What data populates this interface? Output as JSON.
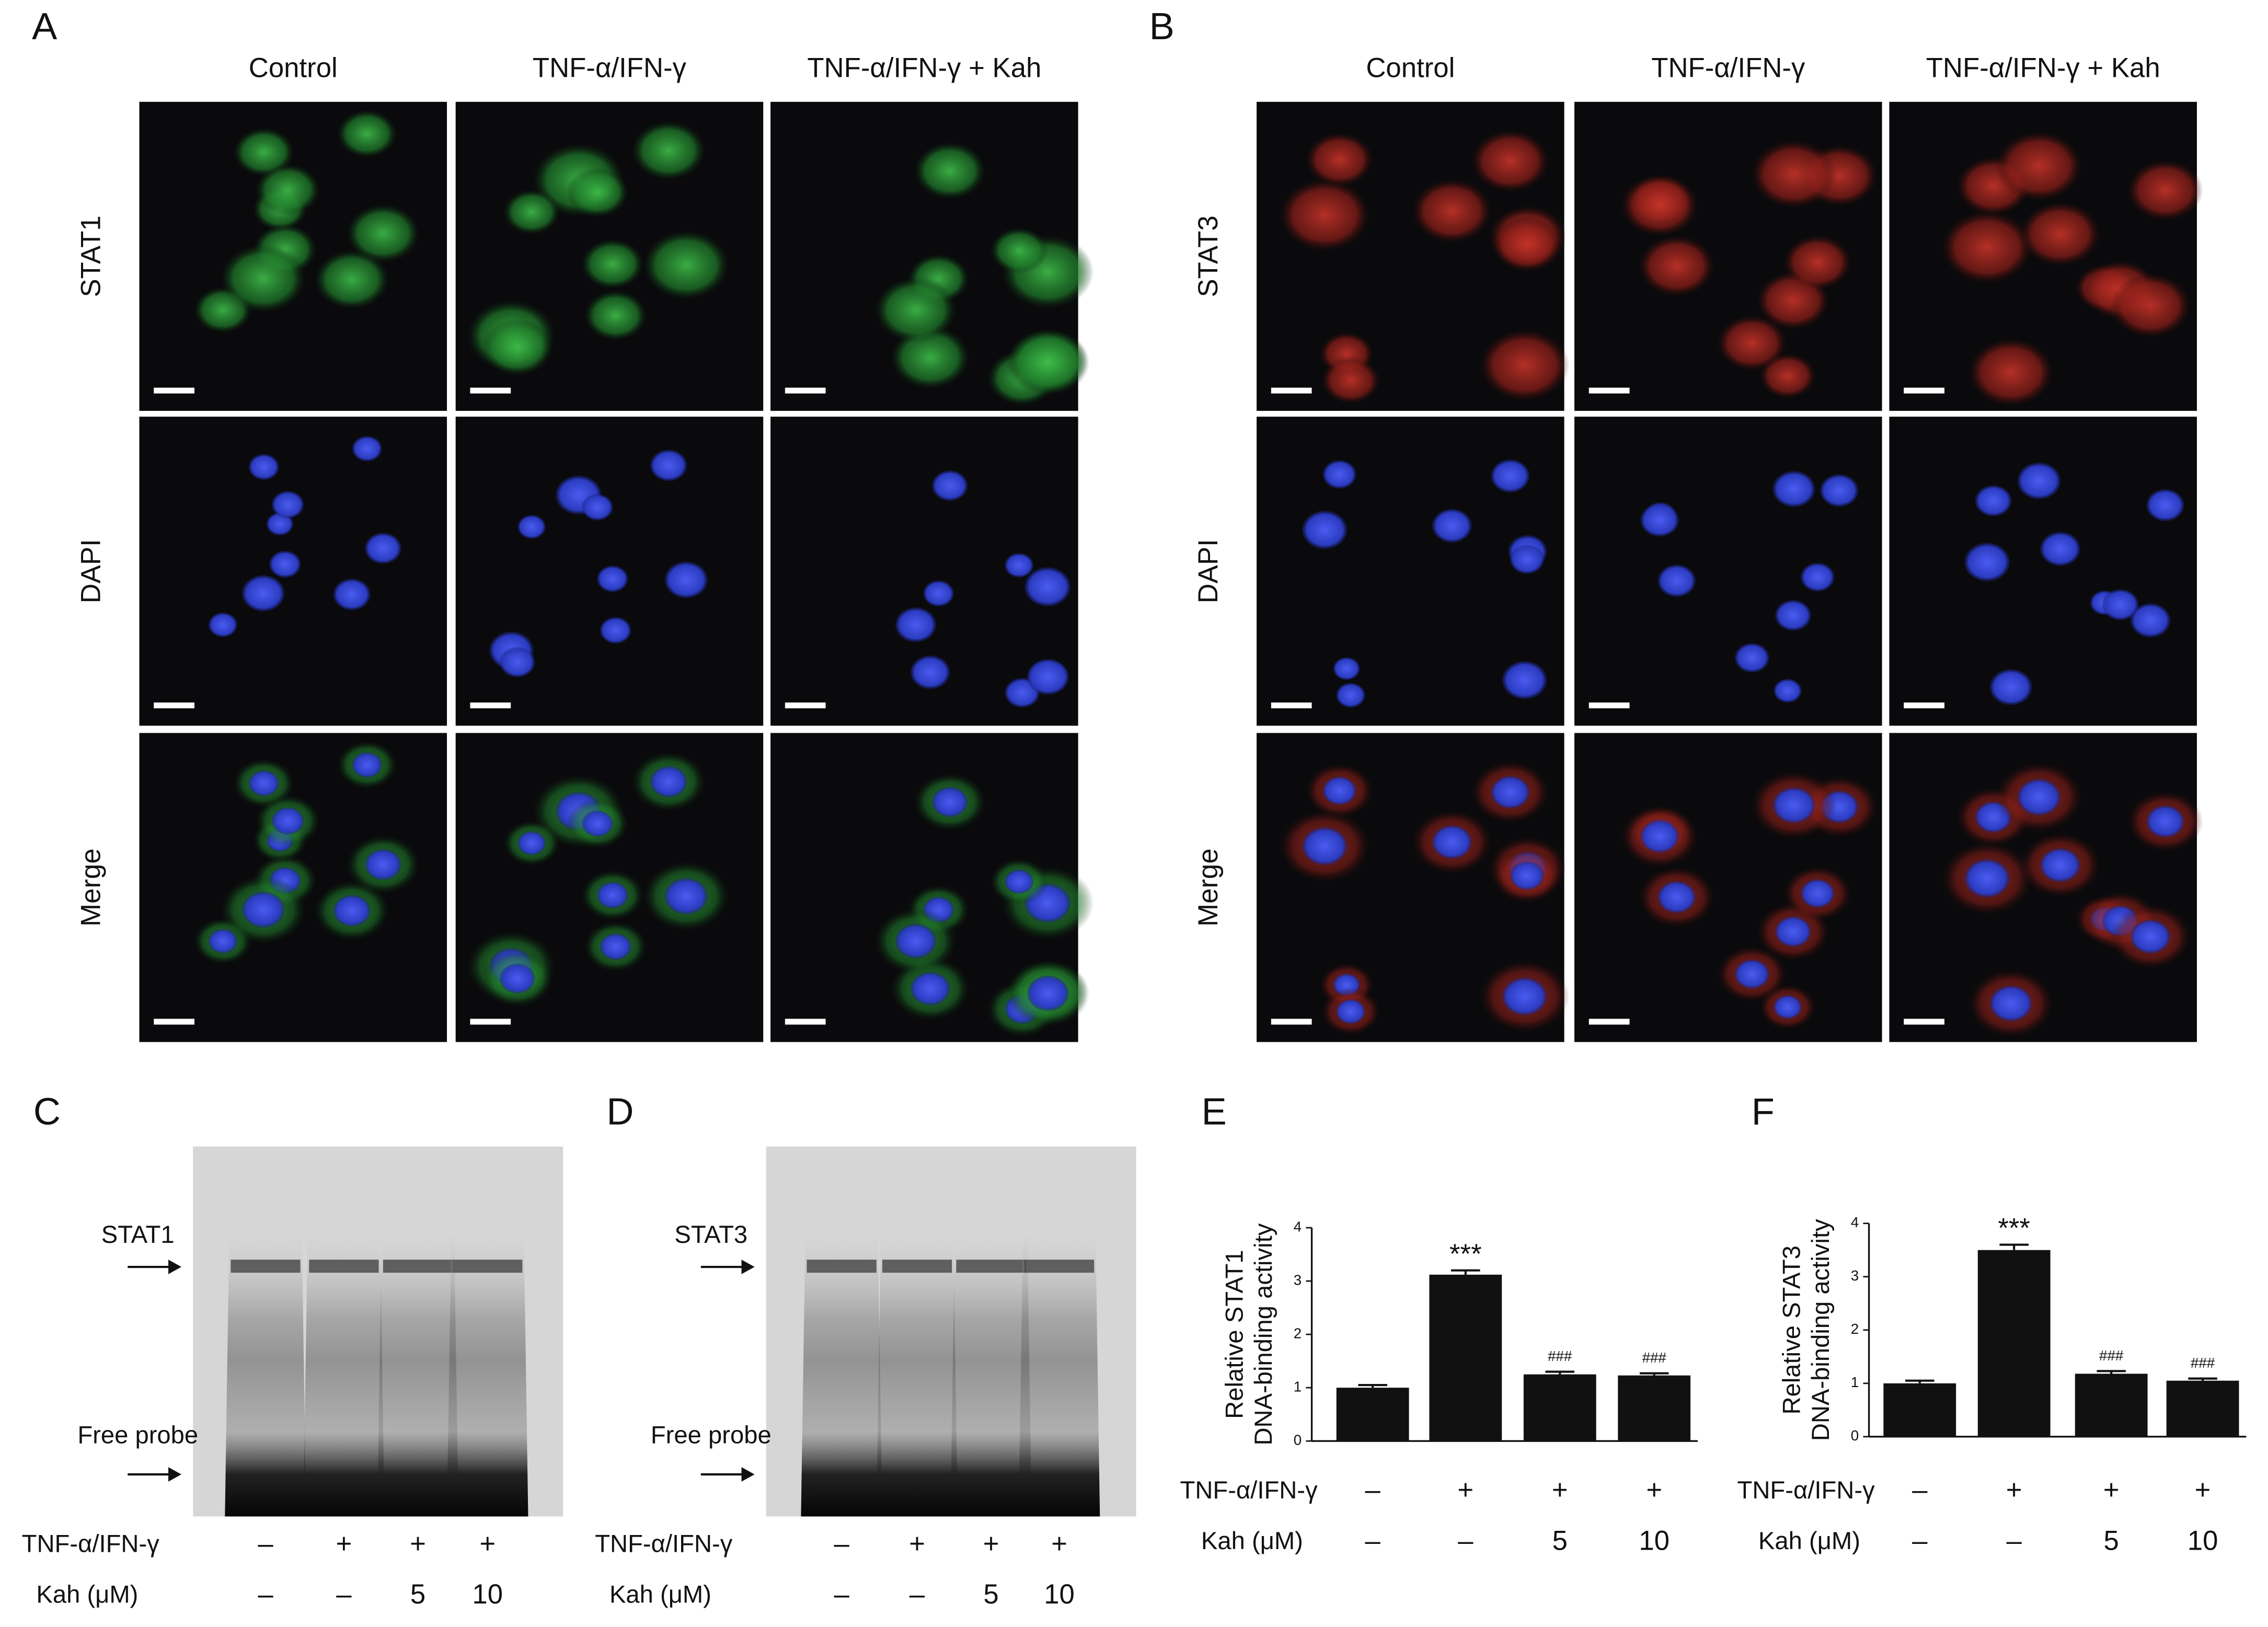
{
  "panel_a": {
    "letter": "A",
    "columns": [
      "Control",
      "TNF-α/IFN-γ",
      "TNF-α/IFN-γ + Kah"
    ],
    "rows": [
      "STAT1",
      "DAPI",
      "Merge"
    ]
  },
  "panel_b": {
    "letter": "B",
    "columns": [
      "Control",
      "TNF-α/IFN-γ",
      "TNF-α/IFN-γ + Kah"
    ],
    "rows": [
      "STAT3",
      "DAPI",
      "Merge"
    ]
  },
  "panel_c": {
    "letter": "C",
    "bands": [
      "STAT1",
      "Free probe"
    ],
    "conditions": [
      {
        "label": "TNF-α/IFN-γ",
        "values": [
          "–",
          "+",
          "+",
          "+"
        ]
      },
      {
        "label": "Kah (μM)",
        "values": [
          "–",
          "–",
          "5",
          "10"
        ]
      }
    ]
  },
  "panel_d": {
    "letter": "D",
    "bands": [
      "STAT3",
      "Free probe"
    ],
    "conditions": [
      {
        "label": "TNF-α/IFN-γ",
        "values": [
          "–",
          "+",
          "+",
          "+"
        ]
      },
      {
        "label": "Kah (μM)",
        "values": [
          "–",
          "–",
          "5",
          "10"
        ]
      }
    ]
  },
  "chart_data": [
    {
      "type": "bar",
      "panel": "E",
      "y_label": [
        "Relative STAT1",
        "DNA-binding activity"
      ],
      "values": [
        1.0,
        3.12,
        1.25,
        1.23
      ],
      "errors": [
        0.05,
        0.08,
        0.05,
        0.04
      ],
      "annotations": [
        null,
        "***",
        "###",
        "###"
      ],
      "color": "#111111",
      "ylim": [
        0,
        4
      ],
      "yticks": [
        0,
        1,
        2,
        3,
        4
      ],
      "conditions": [
        {
          "label": "TNF-α/IFN-γ",
          "values": [
            "–",
            "+",
            "+",
            "+"
          ]
        },
        {
          "label": "Kah (μM)",
          "values": [
            "–",
            "–",
            "5",
            "10"
          ]
        }
      ]
    },
    {
      "type": "bar",
      "panel": "F",
      "y_label": [
        "Relative STAT3",
        "DNA-binding activity"
      ],
      "values": [
        1.0,
        3.5,
        1.18,
        1.05
      ],
      "errors": [
        0.05,
        0.1,
        0.05,
        0.04
      ],
      "annotations": [
        null,
        "***",
        "###",
        "###"
      ],
      "color": "#111111",
      "ylim": [
        0,
        4
      ],
      "yticks": [
        0,
        1,
        2,
        3,
        4
      ],
      "conditions": [
        {
          "label": "TNF-α/IFN-γ",
          "values": [
            "–",
            "+",
            "+",
            "+"
          ]
        },
        {
          "label": "Kah (μM)",
          "values": [
            "–",
            "–",
            "5",
            "10"
          ]
        }
      ]
    }
  ]
}
